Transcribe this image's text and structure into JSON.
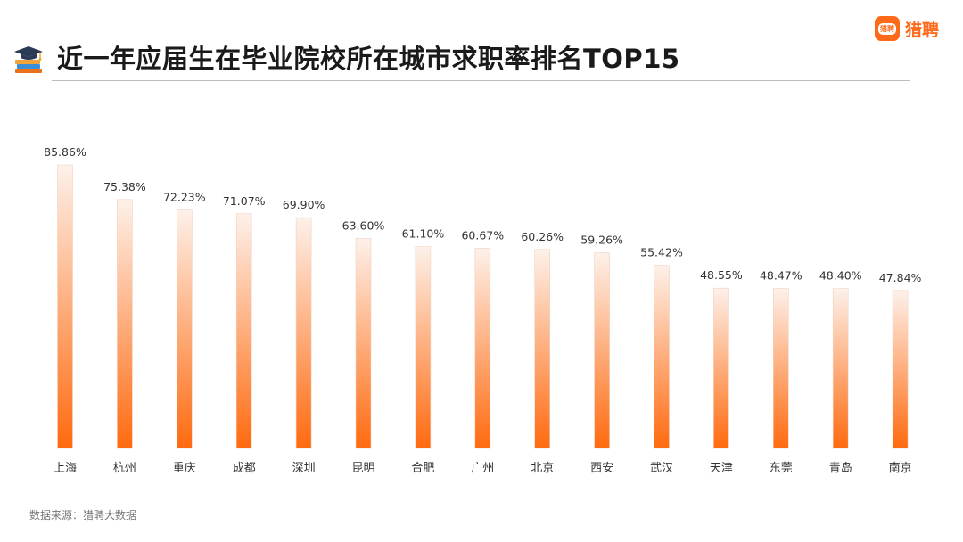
{
  "header": {
    "title": "近一年应届生在毕业院校所在城市求职率排名TOP15",
    "brand": {
      "logo_text": "猎聘",
      "name": "猎聘"
    }
  },
  "icons": {
    "title_icon": "graduation-cap-books-icon",
    "brand_icon": "liepin-logo-icon"
  },
  "colors": {
    "bar_top": "#fdf1ea",
    "bar_bottom": "#ff6a0f",
    "accent": "#ff6a1a",
    "label": "#333333"
  },
  "chart_data": {
    "type": "bar",
    "title": "近一年应届生在毕业院校所在城市求职率排名TOP15",
    "categories": [
      "上海",
      "杭州",
      "重庆",
      "成都",
      "深圳",
      "昆明",
      "合肥",
      "广州",
      "北京",
      "西安",
      "武汉",
      "天津",
      "东莞",
      "青岛",
      "南京"
    ],
    "values": [
      85.86,
      75.38,
      72.23,
      71.07,
      69.9,
      63.6,
      61.1,
      60.67,
      60.26,
      59.26,
      55.42,
      48.55,
      48.47,
      48.4,
      47.84
    ],
    "labels": [
      "85.86%",
      "75.38%",
      "72.23%",
      "71.07%",
      "69.90%",
      "63.60%",
      "61.10%",
      "60.67%",
      "60.26%",
      "59.26%",
      "55.42%",
      "48.55%",
      "48.47%",
      "48.40%",
      "47.84%"
    ],
    "unit": "%",
    "ylim": [
      0,
      100
    ],
    "grid": false,
    "legend": "none"
  },
  "footer": {
    "source": "数据来源：猎聘大数据"
  }
}
